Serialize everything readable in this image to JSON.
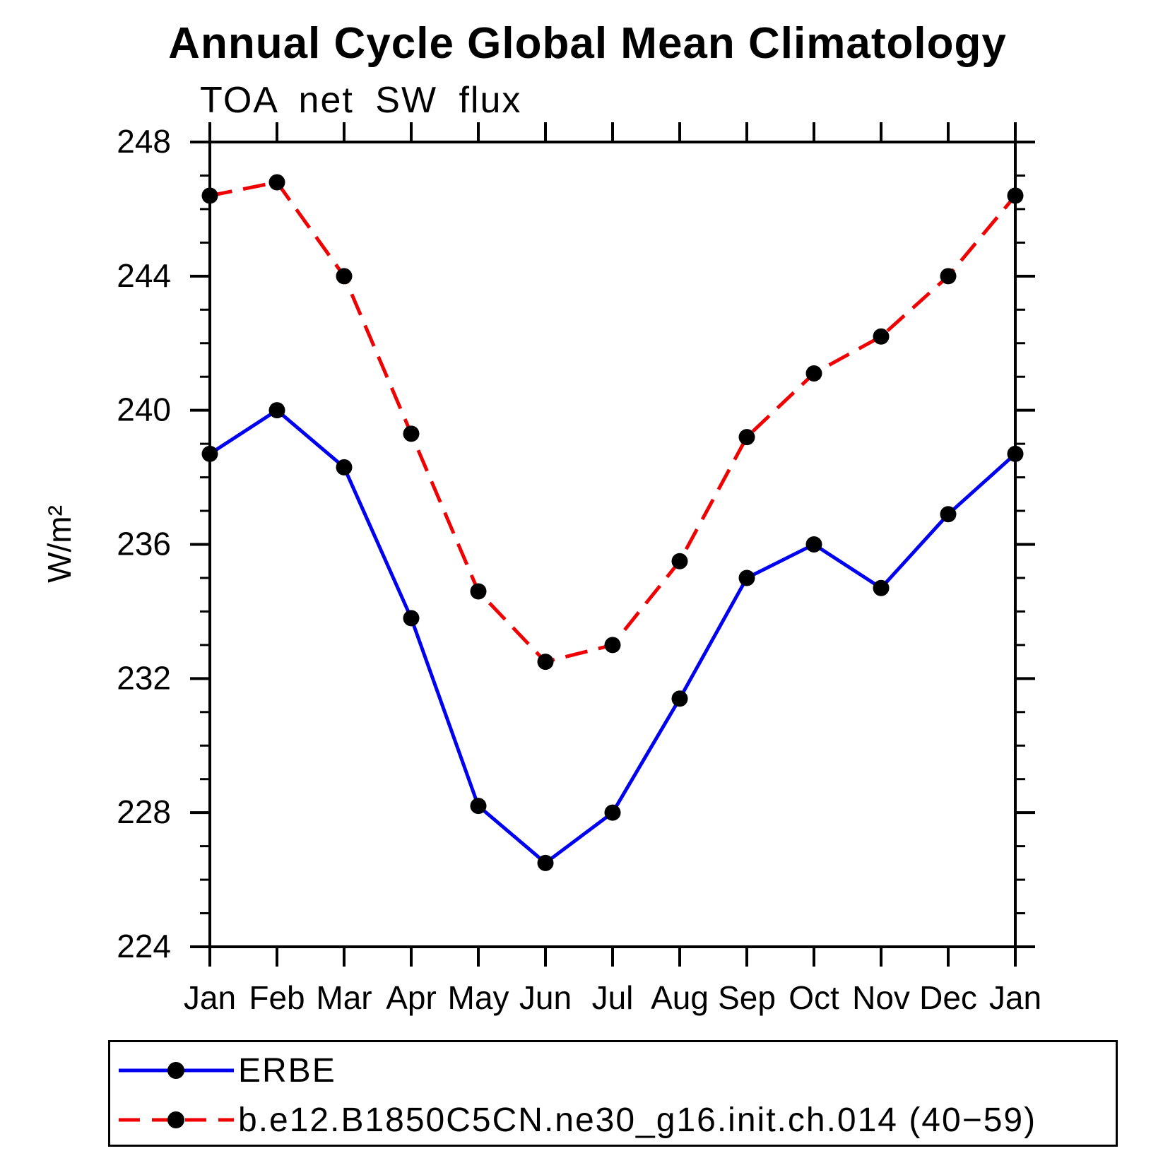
{
  "title": "Annual Cycle Global Mean Climatology",
  "subtitle": "TOA net SW flux",
  "ylabel": "W/m²",
  "chart_data": {
    "type": "line",
    "categories": [
      "Jan",
      "Feb",
      "Mar",
      "Apr",
      "May",
      "Jun",
      "Jul",
      "Aug",
      "Sep",
      "Oct",
      "Nov",
      "Dec",
      "Jan"
    ],
    "series": [
      {
        "name": "ERBE",
        "color": "#0000F0",
        "style": "solid",
        "marker_color": "#000000",
        "values": [
          238.7,
          240.0,
          238.3,
          233.8,
          228.2,
          226.5,
          228.0,
          231.4,
          235.0,
          236.0,
          234.7,
          236.9,
          238.7
        ]
      },
      {
        "name": "b.e12.B1850C5CN.ne30_g16.init.ch.014 (40−59)",
        "color": "#F00000",
        "style": "dashed",
        "marker_color": "#000000",
        "values": [
          246.4,
          246.8,
          244.0,
          239.3,
          234.6,
          232.5,
          233.0,
          235.5,
          239.2,
          241.1,
          242.2,
          244.0,
          246.4
        ]
      }
    ],
    "ylim": [
      224,
      248
    ],
    "yticks_major": [
      224,
      228,
      232,
      236,
      240,
      244,
      248
    ],
    "ytick_minor_step": 1,
    "grid": "off",
    "legend_position": "bottom",
    "axis_color": "#000000"
  }
}
